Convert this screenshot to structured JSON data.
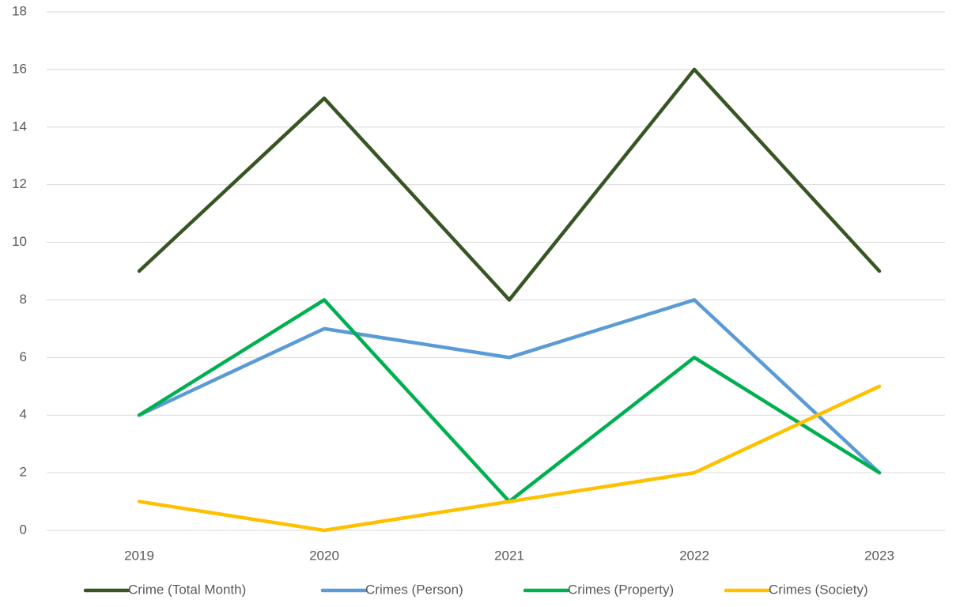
{
  "chart_data": {
    "type": "line",
    "categories": [
      "2019",
      "2020",
      "2021",
      "2022",
      "2023"
    ],
    "series": [
      {
        "name": "Crime (Total Month)",
        "color": "#375623",
        "values": [
          9,
          15,
          8,
          16,
          9
        ]
      },
      {
        "name": "Crimes (Person)",
        "color": "#5b9bd5",
        "values": [
          4,
          7,
          6,
          8,
          2
        ]
      },
      {
        "name": "Crimes (Property)",
        "color": "#00b050",
        "values": [
          4,
          8,
          1,
          6,
          2
        ]
      },
      {
        "name": "Crimes (Society)",
        "color": "#ffc000",
        "values": [
          1,
          0,
          1,
          2,
          5
        ]
      }
    ],
    "ylim": [
      0,
      18
    ],
    "yticks": [
      0,
      2,
      4,
      6,
      8,
      10,
      12,
      14,
      16,
      18
    ],
    "grid": true,
    "legend": "bottom"
  }
}
